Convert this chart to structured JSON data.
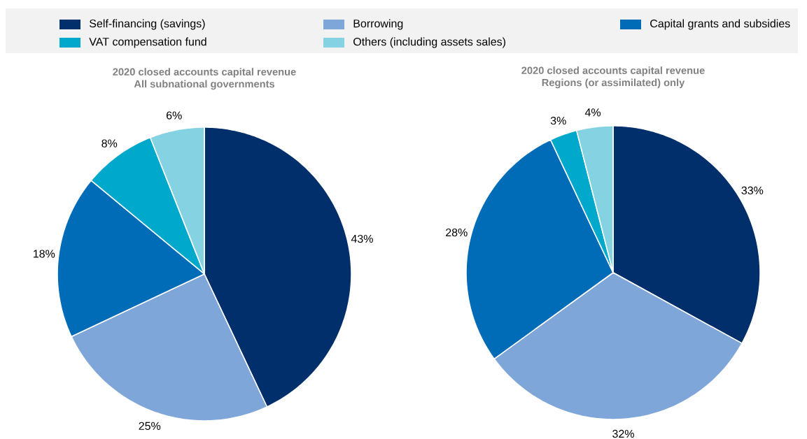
{
  "chart_data": [
    {
      "type": "pie",
      "title": "2020 closed accounts capital revenue",
      "subtitle": "All subnational governments",
      "legend": "top",
      "categories": [
        "Self-financing (savings)",
        "Borrowing",
        "Capital grants and subsidies",
        "VAT compensation fund",
        "Others (including assets sales)"
      ],
      "values": [
        43,
        25,
        18,
        8,
        6
      ],
      "value_labels": [
        "43%",
        "25%",
        "18%",
        "8%",
        "6%"
      ],
      "colors": [
        "#002f6c",
        "#7fa6d8",
        "#006bb6",
        "#00a9cc",
        "#84d2e2"
      ]
    },
    {
      "type": "pie",
      "title": "2020 closed accounts capital revenue",
      "subtitle": "Regions (or assimilated) only",
      "values": [
        33,
        32,
        28,
        3,
        4
      ],
      "value_labels": [
        "33%",
        "32%",
        "28%",
        "3%",
        "4%"
      ],
      "colors": [
        "#002f6c",
        "#7fa6d8",
        "#006bb6",
        "#00a9cc",
        "#84d2e2"
      ]
    }
  ]
}
